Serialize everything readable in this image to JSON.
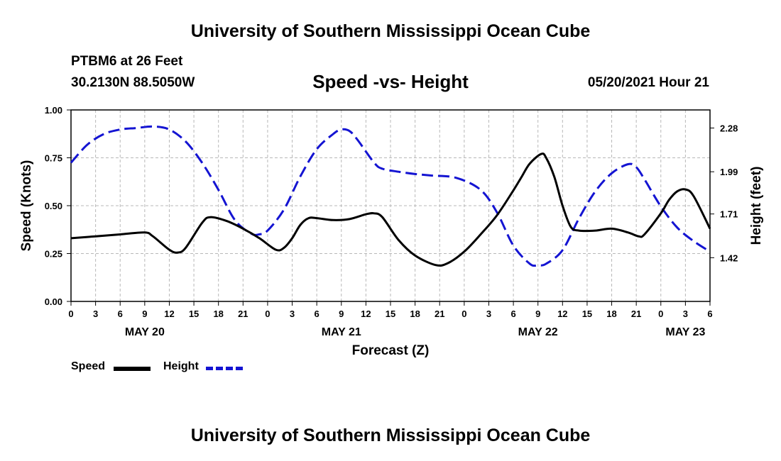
{
  "header": {
    "title": "University of Southern Mississippi Ocean Cube",
    "station": "PTBM6 at 26 Feet",
    "coords": "30.2130N  88.5050W",
    "chart_title": "Speed -vs- Height",
    "datetime": "05/20/2021 Hour 21"
  },
  "footer": {
    "title": "University of Southern Mississippi Ocean Cube"
  },
  "legend": {
    "speed_label": "Speed",
    "height_label": "Height"
  },
  "colors": {
    "speed": "#000000",
    "height": "#1414d2",
    "grid": "#b8b8b8"
  },
  "chart_data": {
    "type": "line",
    "title": "Speed -vs- Height",
    "xlabel": "Forecast (Z)",
    "ylabel": "Speed (Knots)",
    "y2label": "Height (feet)",
    "xlim": [
      0,
      78
    ],
    "ylim": [
      0,
      1.0
    ],
    "y2lim": [
      1.13,
      2.4
    ],
    "x_tick_labels": [
      "0",
      "3",
      "6",
      "9",
      "12",
      "15",
      "18",
      "21",
      "0",
      "3",
      "6",
      "9",
      "12",
      "15",
      "18",
      "21",
      "0",
      "3",
      "6",
      "9",
      "12",
      "15",
      "18",
      "21",
      "0",
      "3",
      "6"
    ],
    "y_ticks": [
      {
        "value": 0.0,
        "label": "0.00"
      },
      {
        "value": 0.25,
        "label": "0.25"
      },
      {
        "value": 0.5,
        "label": "0.50"
      },
      {
        "value": 0.75,
        "label": "0.75"
      },
      {
        "value": 1.0,
        "label": "1.00"
      }
    ],
    "y2_ticks": [
      {
        "value": 1.42,
        "label": "1.42"
      },
      {
        "value": 1.71,
        "label": "1.71"
      },
      {
        "value": 1.99,
        "label": "1.99"
      },
      {
        "value": 2.28,
        "label": "2.28"
      }
    ],
    "date_labels": [
      {
        "x": 9,
        "label": "MAY 20"
      },
      {
        "x": 33,
        "label": "MAY 21"
      },
      {
        "x": 57,
        "label": "MAY 22"
      },
      {
        "x": 75,
        "label": "MAY 23"
      }
    ],
    "series": [
      {
        "name": "Speed",
        "axis": "left",
        "style": "solid",
        "x": [
          0,
          3,
          6,
          9,
          10,
          12,
          13,
          14,
          16,
          17,
          19,
          21,
          23,
          25,
          26,
          27,
          28,
          29,
          30,
          32,
          34,
          36,
          37,
          38,
          40,
          42,
          44.5,
          46,
          48,
          50,
          52,
          54,
          55,
          56,
          57.4,
          58,
          59,
          60,
          61,
          62,
          64,
          66,
          68,
          69.3,
          70,
          72,
          73,
          74,
          75,
          76,
          78
        ],
        "y": [
          0.33,
          0.34,
          0.35,
          0.36,
          0.34,
          0.27,
          0.255,
          0.28,
          0.41,
          0.44,
          0.42,
          0.38,
          0.33,
          0.27,
          0.28,
          0.33,
          0.4,
          0.435,
          0.435,
          0.425,
          0.43,
          0.455,
          0.46,
          0.44,
          0.32,
          0.24,
          0.19,
          0.2,
          0.26,
          0.35,
          0.45,
          0.58,
          0.65,
          0.72,
          0.77,
          0.75,
          0.65,
          0.5,
          0.39,
          0.37,
          0.37,
          0.38,
          0.36,
          0.34,
          0.35,
          0.46,
          0.53,
          0.575,
          0.585,
          0.55,
          0.38
        ]
      },
      {
        "name": "Height",
        "axis": "right",
        "style": "dashed",
        "x": [
          0,
          2,
          4,
          6,
          8,
          10,
          12,
          14,
          16,
          18,
          20,
          22,
          23,
          24,
          26,
          28,
          30,
          32,
          33,
          34,
          35,
          37,
          38,
          40,
          42,
          44,
          47,
          50,
          52,
          54,
          56,
          57,
          58,
          60,
          62,
          64,
          66,
          68,
          69,
          70,
          72,
          74,
          76,
          78
        ],
        "y": [
          2.05,
          2.17,
          2.24,
          2.27,
          2.28,
          2.29,
          2.27,
          2.19,
          2.05,
          1.87,
          1.67,
          1.58,
          1.575,
          1.6,
          1.74,
          1.96,
          2.14,
          2.24,
          2.27,
          2.26,
          2.2,
          2.05,
          2.01,
          1.99,
          1.975,
          1.965,
          1.95,
          1.87,
          1.72,
          1.5,
          1.38,
          1.37,
          1.38,
          1.47,
          1.68,
          1.86,
          1.98,
          2.04,
          2.02,
          1.94,
          1.76,
          1.62,
          1.53,
          1.46
        ]
      }
    ]
  }
}
